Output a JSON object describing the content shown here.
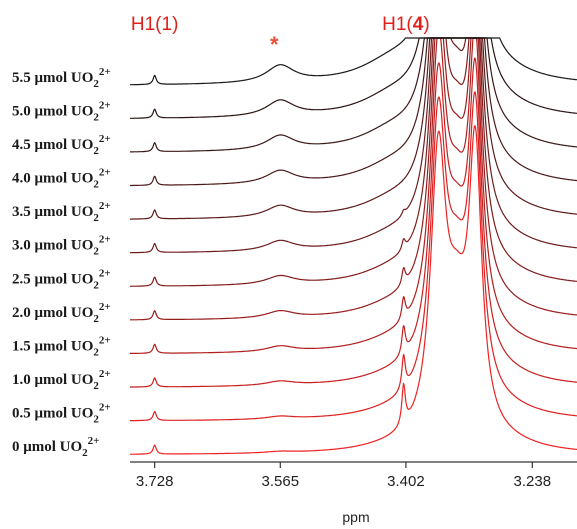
{
  "chart_data": {
    "type": "line",
    "title": "",
    "xlabel": "ppm",
    "ylabel": "",
    "x_reversed": true,
    "xlim": [
      3.76,
      3.18
    ],
    "x_ticks": [
      3.728,
      3.565,
      3.402,
      3.238
    ],
    "x_tick_labels": [
      "3.728",
      "3.565",
      "3.402",
      "3.238"
    ],
    "annotations": [
      {
        "text": "H1(1)",
        "ppm": 3.728
      },
      {
        "text": "*",
        "ppm": 3.565
      },
      {
        "text_main": "H1(",
        "text_bold": "4",
        "text_close": ")",
        "ppm": 3.402
      }
    ],
    "series": [
      {
        "name": "5.5 μmol UO2 2+",
        "base": "5.5 μmol UO",
        "sub": "2",
        "sup": "2+",
        "color": "#1a1a1a",
        "d": 5.5
      },
      {
        "name": "5.0 μmol UO2 2+",
        "base": "5.0 μmol UO",
        "sub": "2",
        "sup": "2+",
        "color": "#2b1515",
        "d": 5.0
      },
      {
        "name": "4.5 μmol UO2 2+",
        "base": "4.5 μmol UO",
        "sub": "2",
        "sup": "2+",
        "color": "#3a1818",
        "d": 4.5
      },
      {
        "name": "4.0 μmol UO2 2+",
        "base": "4.0 μmol UO",
        "sub": "2",
        "sup": "2+",
        "color": "#4a1a1a",
        "d": 4.0
      },
      {
        "name": "3.5 μmol UO2 2+",
        "base": "3.5 μmol UO",
        "sub": "2",
        "sup": "2+",
        "color": "#5b1b1b",
        "d": 3.5
      },
      {
        "name": "3.0 μmol UO2 2+",
        "base": "3.0 μmol UO",
        "sub": "2",
        "sup": "2+",
        "color": "#6e1c1c",
        "d": 3.0
      },
      {
        "name": "2.5 μmol UO2 2+",
        "base": "2.5 μmol UO",
        "sub": "2",
        "sup": "2+",
        "color": "#821c1c",
        "d": 2.5
      },
      {
        "name": "2.0 μmol UO2 2+",
        "base": "2.0 μmol UO",
        "sub": "2",
        "sup": "2+",
        "color": "#981d1d",
        "d": 2.0
      },
      {
        "name": "1.5 μmol UO2 2+",
        "base": "1.5 μmol UO",
        "sub": "2",
        "sup": "2+",
        "color": "#b01e1e",
        "d": 1.5
      },
      {
        "name": "1.0 μmol UO2 2+",
        "base": "1.0 μmol UO",
        "sub": "2",
        "sup": "2+",
        "color": "#c81f1f",
        "d": 1.0
      },
      {
        "name": "0.5 μmol UO2 2+",
        "base": "0.5 μmol UO",
        "sub": "2",
        "sup": "2+",
        "color": "#de2020",
        "d": 0.5
      },
      {
        "name": "0 μmol UO2 2+",
        "base": "0 μmol UO",
        "sub": "2",
        "sup": "2+",
        "color": "#f02222",
        "d": 0.0
      }
    ],
    "grid": false,
    "legend": "inline-left"
  }
}
